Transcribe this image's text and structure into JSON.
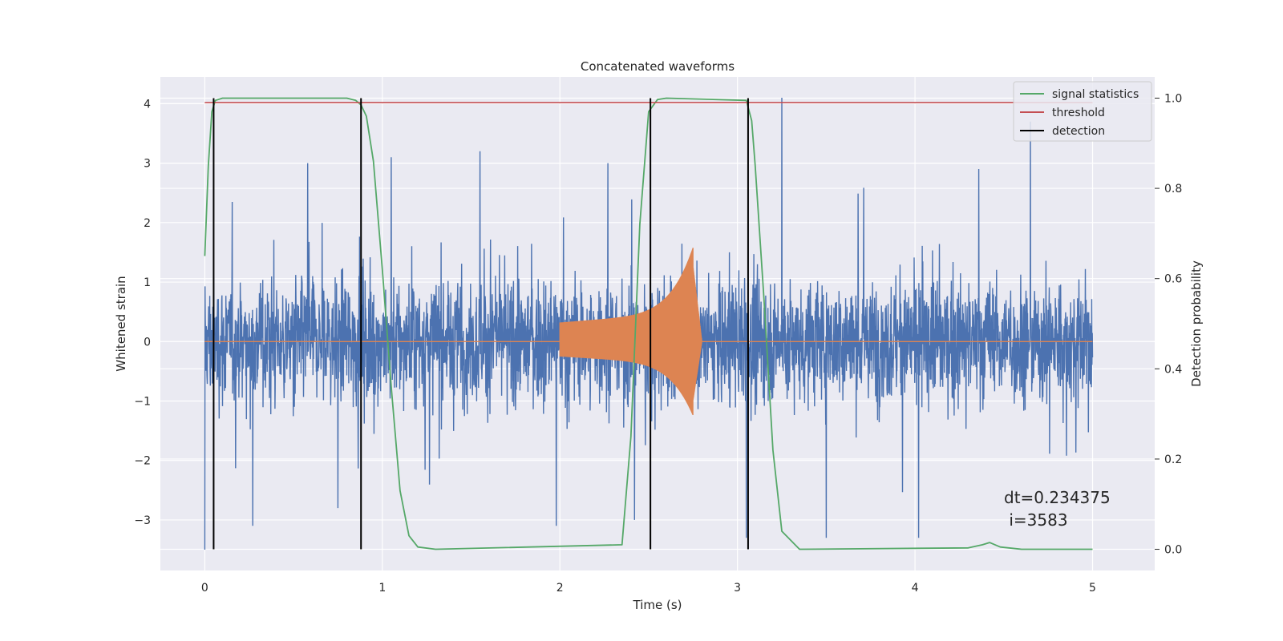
{
  "chart_data": {
    "type": "line",
    "title": "Concatenated waveforms",
    "xlabel": "Time (s)",
    "ylabel": "Whitened strain",
    "y2label": "Detection probability",
    "xlim": [
      -0.25,
      5.35
    ],
    "ylim": [
      -3.85,
      4.45
    ],
    "y2lim": [
      -0.047,
      1.047
    ],
    "xticks": [
      0,
      1,
      2,
      3,
      4,
      5
    ],
    "yticks": [
      -3,
      -2,
      -1,
      0,
      1,
      2,
      3,
      4
    ],
    "y2ticks": [
      0.0,
      0.2,
      0.4,
      0.6,
      0.8,
      1.0
    ],
    "xtick_labels": [
      "0",
      "1",
      "2",
      "3",
      "4",
      "5"
    ],
    "ytick_labels": [
      "−3",
      "−2",
      "−1",
      "0",
      "1",
      "2",
      "3",
      "4"
    ],
    "y2tick_labels": [
      "0.0",
      "0.2",
      "0.4",
      "0.6",
      "0.8",
      "1.0"
    ],
    "grid": true,
    "legend_position": "top-right",
    "background": "#eaeaf2",
    "series": [
      {
        "name": "",
        "kind": "noise",
        "color": "#4c72b0",
        "x_range": [
          0,
          5
        ],
        "amplitude_typical": 1.8,
        "spikes": [
          {
            "x": 0.0,
            "y": -3.5
          },
          {
            "x": 0.27,
            "y": -3.1
          },
          {
            "x": 0.58,
            "y": 3.0
          },
          {
            "x": 0.75,
            "y": -2.8
          },
          {
            "x": 1.05,
            "y": 3.1
          },
          {
            "x": 1.55,
            "y": 3.2
          },
          {
            "x": 1.98,
            "y": -3.1
          },
          {
            "x": 2.27,
            "y": 3.0
          },
          {
            "x": 2.42,
            "y": -3.0
          },
          {
            "x": 3.05,
            "y": -3.3
          },
          {
            "x": 3.25,
            "y": 4.1
          },
          {
            "x": 3.5,
            "y": -3.3
          },
          {
            "x": 4.02,
            "y": -3.3
          },
          {
            "x": 4.65,
            "y": 3.7
          },
          {
            "x": 4.36,
            "y": 2.9
          }
        ]
      },
      {
        "name": "",
        "kind": "chirp",
        "color": "#dd8452",
        "x_start": 2.0,
        "x_peak": 2.75,
        "x_end": 2.8,
        "amp_start": 0.32,
        "amp_peak": 1.4,
        "amp_peak_neg": -1.1
      },
      {
        "name": "signal statistics",
        "axis": "right",
        "color": "#55a868",
        "x": [
          0.0,
          0.02,
          0.04,
          0.06,
          0.1,
          0.8,
          0.85,
          0.88,
          0.91,
          0.95,
          1.0,
          1.05,
          1.1,
          1.15,
          1.2,
          1.3,
          2.35,
          2.4,
          2.45,
          2.5,
          2.55,
          2.6,
          3.05,
          3.08,
          3.1,
          3.15,
          3.2,
          3.25,
          3.35,
          4.3,
          4.38,
          4.42,
          4.48,
          4.6,
          5.0
        ],
        "y": [
          0.65,
          0.85,
          0.97,
          0.995,
          1.0,
          1.0,
          0.995,
          0.985,
          0.96,
          0.86,
          0.62,
          0.36,
          0.13,
          0.03,
          0.005,
          0.0,
          0.01,
          0.25,
          0.72,
          0.97,
          0.997,
          1.0,
          0.995,
          0.95,
          0.85,
          0.55,
          0.22,
          0.04,
          0.0,
          0.003,
          0.01,
          0.015,
          0.005,
          0.0,
          0.0
        ]
      },
      {
        "name": "threshold",
        "axis": "right",
        "color": "#c44e52",
        "x": [
          0.0,
          5.0
        ],
        "y": [
          0.99,
          0.99
        ]
      },
      {
        "name": "detection",
        "axis": "right",
        "color": "#000000",
        "kind": "vlines",
        "x": [
          0.05,
          0.88,
          2.51,
          3.06
        ],
        "ymin": 0.0,
        "ymax": 1.0
      }
    ],
    "annotations": [
      "dt=0.234375",
      " i=3583"
    ]
  }
}
